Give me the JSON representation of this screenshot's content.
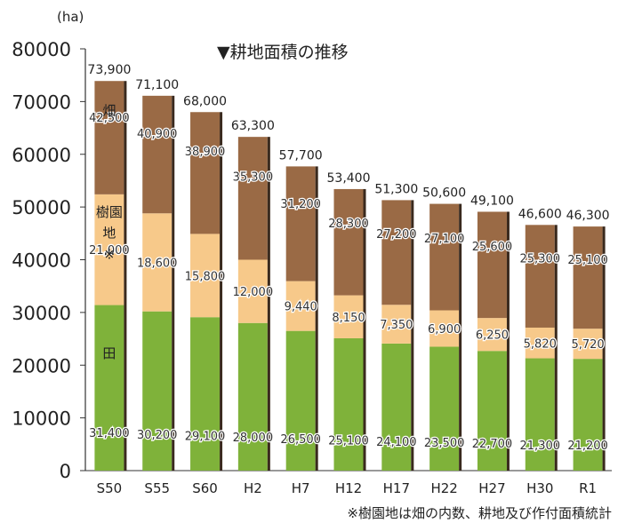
{
  "chart_data": {
    "type": "bar",
    "stacked": true,
    "title": "▼耕地面積の推移",
    "unit_label": "(ha)",
    "ylim": [
      0,
      80000
    ],
    "yticks": [
      0,
      10000,
      20000,
      30000,
      40000,
      50000,
      60000,
      70000,
      80000
    ],
    "categories": [
      "S50",
      "S55",
      "S60",
      "H2",
      "H7",
      "H12",
      "H17",
      "H22",
      "H27",
      "H30",
      "R1"
    ],
    "series": [
      {
        "name": "田",
        "color": "#7fb23a",
        "values": [
          31400,
          30200,
          29100,
          28000,
          26500,
          25100,
          24100,
          23500,
          22700,
          21300,
          21200
        ],
        "labels": [
          "31,400",
          "30,200",
          "29,100",
          "28,000",
          "26,500",
          "25,100",
          "24,100",
          "23,500",
          "22,700",
          "21,300",
          "21,200"
        ]
      },
      {
        "name": "樹園地※",
        "color": "#f7c98a",
        "values": [
          21000,
          18600,
          15800,
          12000,
          9440,
          8150,
          7350,
          6900,
          6250,
          5820,
          5720
        ],
        "labels": [
          "21,000",
          "18,600",
          "15,800",
          "12,000",
          "9,440",
          "8,150",
          "7,350",
          "6,900",
          "6,250",
          "5,820",
          "5,720"
        ]
      },
      {
        "name": "畑",
        "color": "#9a6a45",
        "values": [
          21500,
          22300,
          23100,
          23300,
          21760,
          20150,
          19850,
          20200,
          20150,
          19480,
          19380
        ],
        "labels": [
          "42,500",
          "40,900",
          "38,900",
          "35,300",
          "31,200",
          "28,300",
          "27,200",
          "27,100",
          "25,600",
          "25,300",
          "25,100"
        ]
      }
    ],
    "totals": [
      73900,
      71100,
      68000,
      63300,
      57700,
      53400,
      51300,
      50600,
      49100,
      46600,
      46300
    ],
    "total_labels": [
      "73,900",
      "71,100",
      "68,000",
      "63,300",
      "57,700",
      "53,400",
      "51,300",
      "50,600",
      "49,100",
      "46,600",
      "46,300"
    ],
    "inline_legend": {
      "hatake": "畑",
      "juenchi_1": "樹園",
      "juenchi_2": "地",
      "juenchi_3": "※",
      "ta": "田"
    },
    "footnote": "※樹園地は畑の内数、耕地及び作付面積統計"
  }
}
